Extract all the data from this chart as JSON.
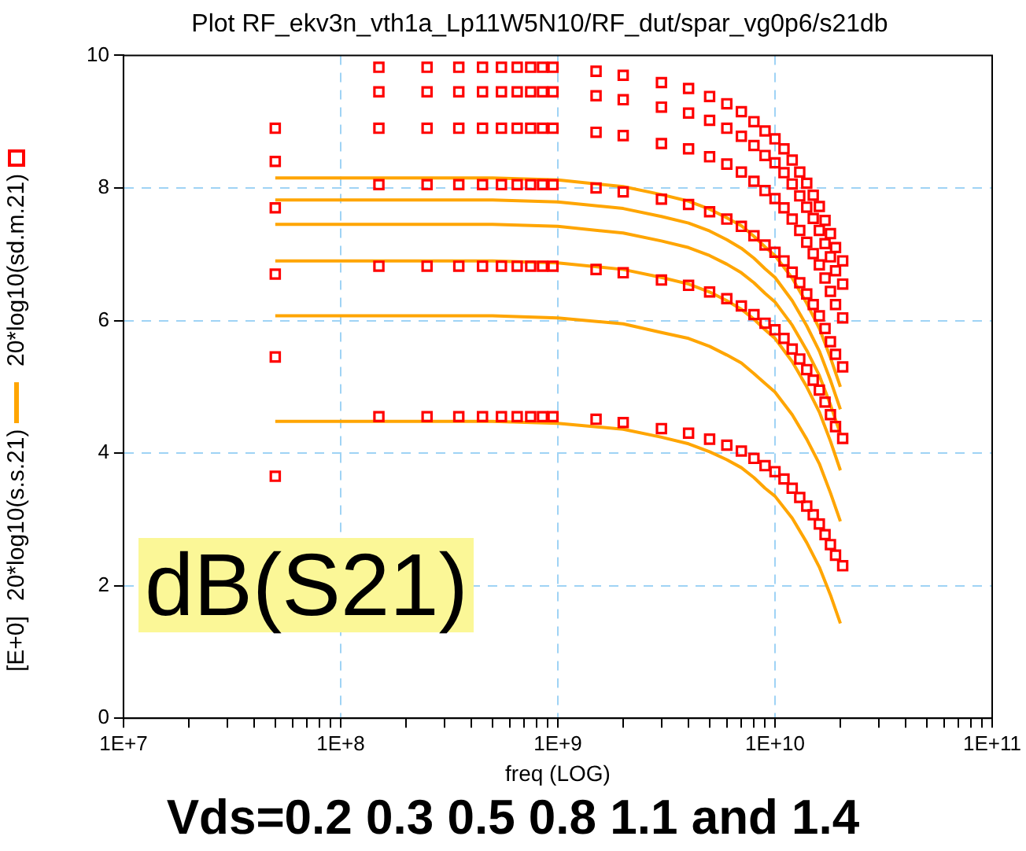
{
  "chart_data": {
    "type": "line",
    "title": "Plot RF_ekv3n_vth1a_Lp11W5N10/RF_dut/spar_vg0p6/s21db",
    "xlabel": "freq (LOG)",
    "ylabel": "[E+0]",
    "annotations": [
      "dB(S21)",
      "Vds=0.2 0.3 0.5 0.8 1.1 and 1.4"
    ],
    "log": "x",
    "grid": true,
    "legend": "left",
    "xlim": [
      10000000,
      100000000000
    ],
    "xticks": [
      {
        "value": 10000000,
        "label": "1E+7"
      },
      {
        "value": 20000000,
        "label": null
      },
      {
        "value": 30000000,
        "label": null
      },
      {
        "value": 40000000,
        "label": null
      },
      {
        "value": 50000000,
        "label": null
      },
      {
        "value": 60000000,
        "label": null
      },
      {
        "value": 70000000,
        "label": null
      },
      {
        "value": 80000000,
        "label": null
      },
      {
        "value": 90000000,
        "label": null
      },
      {
        "value": 100000000,
        "label": "1E+8"
      },
      {
        "value": 200000000,
        "label": null
      },
      {
        "value": 300000000,
        "label": null
      },
      {
        "value": 400000000,
        "label": null
      },
      {
        "value": 500000000,
        "label": null
      },
      {
        "value": 600000000,
        "label": null
      },
      {
        "value": 700000000,
        "label": null
      },
      {
        "value": 800000000,
        "label": null
      },
      {
        "value": 900000000,
        "label": null
      },
      {
        "value": 1000000000,
        "label": "1E+9"
      },
      {
        "value": 2000000000,
        "label": null
      },
      {
        "value": 3000000000,
        "label": null
      },
      {
        "value": 4000000000,
        "label": null
      },
      {
        "value": 5000000000,
        "label": null
      },
      {
        "value": 6000000000,
        "label": null
      },
      {
        "value": 7000000000,
        "label": null
      },
      {
        "value": 8000000000,
        "label": null
      },
      {
        "value": 9000000000,
        "label": null
      },
      {
        "value": 10000000000,
        "label": "1E+10"
      },
      {
        "value": 20000000000,
        "label": null
      },
      {
        "value": 30000000000,
        "label": null
      },
      {
        "value": 40000000000,
        "label": null
      },
      {
        "value": 50000000000,
        "label": null
      },
      {
        "value": 60000000000,
        "label": null
      },
      {
        "value": 70000000000,
        "label": null
      },
      {
        "value": 80000000000,
        "label": null
      },
      {
        "value": 90000000000,
        "label": null
      },
      {
        "value": 100000000000,
        "label": "1E+11"
      }
    ],
    "ylim": [
      0,
      10
    ],
    "yticks": [
      0,
      2,
      4,
      6,
      8,
      10
    ],
    "series": [
      {
        "name": "20*log10(sd.m.21)",
        "type": "scatter",
        "marker": "square",
        "color": "#ff0000",
        "x": [
          50000000,
          150000000,
          250000000,
          350000000,
          450000000,
          550000000,
          650000000,
          750000000,
          850000000,
          950000000,
          1500000000,
          2000000000,
          3000000000,
          4000000000,
          5000000000,
          6000000000,
          7000000000,
          8000000000,
          9000000000,
          10000000000,
          11000000000,
          12000000000,
          13000000000,
          14000000000,
          15000000000,
          16000000000,
          17000000000,
          18000000000,
          19000000000,
          20500000000
        ],
        "values": [
          8.9,
          9.82,
          9.82,
          9.82,
          9.82,
          9.82,
          9.82,
          9.82,
          9.82,
          9.82,
          9.76,
          9.7,
          9.59,
          9.5,
          9.38,
          9.27,
          9.15,
          9.0,
          8.86,
          8.74,
          8.59,
          8.42,
          8.24,
          8.07,
          7.89,
          7.72,
          7.51,
          7.31,
          7.1,
          6.9
        ]
      },
      {
        "type": "scatter",
        "marker": "square",
        "color": "#ff0000",
        "x": [
          50000000,
          150000000,
          250000000,
          350000000,
          450000000,
          550000000,
          650000000,
          750000000,
          850000000,
          950000000,
          1500000000,
          2000000000,
          3000000000,
          4000000000,
          5000000000,
          6000000000,
          7000000000,
          8000000000,
          9000000000,
          10000000000,
          11000000000,
          12000000000,
          13000000000,
          14000000000,
          15000000000,
          16000000000,
          17000000000,
          18000000000,
          19000000000,
          20500000000
        ],
        "values": [
          8.4,
          9.45,
          9.45,
          9.45,
          9.45,
          9.45,
          9.45,
          9.45,
          9.45,
          9.45,
          9.39,
          9.33,
          9.22,
          9.13,
          9.02,
          8.9,
          8.78,
          8.64,
          8.49,
          8.38,
          8.23,
          8.06,
          7.88,
          7.71,
          7.54,
          7.36,
          7.16,
          6.96,
          6.75,
          6.55
        ]
      },
      {
        "type": "scatter",
        "marker": "square",
        "color": "#ff0000",
        "x": [
          50000000,
          150000000,
          250000000,
          350000000,
          450000000,
          550000000,
          650000000,
          750000000,
          850000000,
          950000000,
          1500000000,
          2000000000,
          3000000000,
          4000000000,
          5000000000,
          6000000000,
          7000000000,
          8000000000,
          9000000000,
          10000000000,
          11000000000,
          12000000000,
          13000000000,
          14000000000,
          15000000000,
          16000000000,
          17000000000,
          18000000000,
          19000000000,
          20500000000
        ],
        "values": [
          7.7,
          8.9,
          8.9,
          8.9,
          8.9,
          8.9,
          8.9,
          8.9,
          8.9,
          8.9,
          8.84,
          8.79,
          8.67,
          8.59,
          8.47,
          8.36,
          8.24,
          8.1,
          7.96,
          7.84,
          7.7,
          7.53,
          7.36,
          7.18,
          7.01,
          6.84,
          6.64,
          6.44,
          6.24,
          6.04
        ]
      },
      {
        "type": "scatter",
        "marker": "square",
        "color": "#ff0000",
        "x": [
          50000000,
          150000000,
          250000000,
          350000000,
          450000000,
          550000000,
          650000000,
          750000000,
          850000000,
          950000000,
          1500000000,
          2000000000,
          3000000000,
          4000000000,
          5000000000,
          6000000000,
          7000000000,
          8000000000,
          9000000000,
          10000000000,
          11000000000,
          12000000000,
          13000000000,
          14000000000,
          15000000000,
          16000000000,
          17000000000,
          18000000000,
          19000000000,
          20500000000
        ],
        "values": [
          6.7,
          8.05,
          8.05,
          8.05,
          8.05,
          8.05,
          8.05,
          8.05,
          8.05,
          8.05,
          8.0,
          7.94,
          7.83,
          7.75,
          7.64,
          7.53,
          7.42,
          7.28,
          7.14,
          7.03,
          6.9,
          6.73,
          6.57,
          6.4,
          6.24,
          6.07,
          5.88,
          5.68,
          5.49,
          5.3
        ]
      },
      {
        "type": "scatter",
        "marker": "square",
        "color": "#ff0000",
        "x": [
          50000000,
          150000000,
          250000000,
          350000000,
          450000000,
          550000000,
          650000000,
          750000000,
          850000000,
          950000000,
          1500000000,
          2000000000,
          3000000000,
          4000000000,
          5000000000,
          6000000000,
          7000000000,
          8000000000,
          9000000000,
          10000000000,
          11000000000,
          12000000000,
          13000000000,
          14000000000,
          15000000000,
          16000000000,
          17000000000,
          18000000000,
          19000000000,
          20500000000
        ],
        "values": [
          5.45,
          6.82,
          6.82,
          6.82,
          6.82,
          6.82,
          6.82,
          6.82,
          6.82,
          6.82,
          6.77,
          6.72,
          6.61,
          6.53,
          6.43,
          6.33,
          6.22,
          6.09,
          5.96,
          5.86,
          5.73,
          5.57,
          5.42,
          5.26,
          5.1,
          4.95,
          4.77,
          4.58,
          4.4,
          4.22
        ]
      },
      {
        "type": "scatter",
        "marker": "square",
        "color": "#ff0000",
        "x": [
          50000000,
          150000000,
          250000000,
          350000000,
          450000000,
          550000000,
          650000000,
          750000000,
          850000000,
          950000000,
          1500000000,
          2000000000,
          3000000000,
          4000000000,
          5000000000,
          6000000000,
          7000000000,
          8000000000,
          9000000000,
          10000000000,
          11000000000,
          12000000000,
          13000000000,
          14000000000,
          15000000000,
          16000000000,
          17000000000,
          18000000000,
          19000000000,
          20500000000
        ],
        "values": [
          3.65,
          4.55,
          4.55,
          4.55,
          4.55,
          4.55,
          4.55,
          4.55,
          4.55,
          4.55,
          4.51,
          4.46,
          4.37,
          4.3,
          4.21,
          4.12,
          4.03,
          3.92,
          3.81,
          3.72,
          3.61,
          3.47,
          3.33,
          3.2,
          3.07,
          2.93,
          2.77,
          2.62,
          2.46,
          2.3
        ]
      },
      {
        "name": "20*log10(s.s.21)",
        "type": "line",
        "color": "#ffa500",
        "x": [
          50000000,
          100000000,
          200000000,
          500000000,
          1000000000,
          2000000000,
          3000000000,
          4000000000,
          5000000000,
          6000000000,
          7000000000,
          8000000000,
          9000000000,
          10000000000,
          12000000000,
          14000000000,
          16000000000,
          18000000000,
          20000000000
        ],
        "values": [
          8.15,
          8.15,
          8.15,
          8.15,
          8.12,
          8.02,
          7.9,
          7.8,
          7.68,
          7.55,
          7.43,
          7.27,
          7.11,
          6.98,
          6.64,
          6.26,
          5.88,
          5.44,
          5.0
        ]
      },
      {
        "type": "line",
        "color": "#ffa500",
        "x": [
          50000000,
          100000000,
          200000000,
          500000000,
          1000000000,
          2000000000,
          3000000000,
          4000000000,
          5000000000,
          6000000000,
          7000000000,
          8000000000,
          9000000000,
          10000000000,
          12000000000,
          14000000000,
          16000000000,
          18000000000,
          20000000000
        ],
        "values": [
          7.82,
          7.82,
          7.82,
          7.82,
          7.79,
          7.69,
          7.57,
          7.47,
          7.35,
          7.22,
          7.09,
          6.94,
          6.78,
          6.65,
          6.3,
          5.92,
          5.54,
          5.1,
          4.66
        ]
      },
      {
        "type": "line",
        "color": "#ffa500",
        "x": [
          50000000,
          100000000,
          200000000,
          500000000,
          1000000000,
          2000000000,
          3000000000,
          4000000000,
          5000000000,
          6000000000,
          7000000000,
          8000000000,
          9000000000,
          10000000000,
          12000000000,
          14000000000,
          16000000000,
          18000000000,
          20000000000
        ],
        "values": [
          7.45,
          7.45,
          7.45,
          7.45,
          7.42,
          7.32,
          7.2,
          7.1,
          6.98,
          6.85,
          6.72,
          6.57,
          6.41,
          6.28,
          5.93,
          5.55,
          5.17,
          4.73,
          4.29
        ]
      },
      {
        "type": "line",
        "color": "#ffa500",
        "x": [
          50000000,
          100000000,
          200000000,
          500000000,
          1000000000,
          2000000000,
          3000000000,
          4000000000,
          5000000000,
          6000000000,
          7000000000,
          8000000000,
          9000000000,
          10000000000,
          12000000000,
          14000000000,
          16000000000,
          18000000000,
          20000000000
        ],
        "values": [
          6.9,
          6.9,
          6.9,
          6.9,
          6.87,
          6.77,
          6.65,
          6.55,
          6.43,
          6.3,
          6.17,
          6.02,
          5.86,
          5.73,
          5.38,
          5.0,
          4.62,
          4.18,
          3.74
        ]
      },
      {
        "type": "line",
        "color": "#ffa500",
        "x": [
          50000000,
          100000000,
          200000000,
          500000000,
          1000000000,
          2000000000,
          3000000000,
          4000000000,
          5000000000,
          6000000000,
          7000000000,
          8000000000,
          9000000000,
          10000000000,
          12000000000,
          14000000000,
          16000000000,
          18000000000,
          20000000000
        ],
        "values": [
          6.07,
          6.07,
          6.07,
          6.07,
          6.04,
          5.95,
          5.82,
          5.73,
          5.61,
          5.48,
          5.36,
          5.2,
          5.05,
          4.92,
          4.58,
          4.21,
          3.84,
          3.4,
          2.97
        ]
      },
      {
        "type": "line",
        "color": "#ffa500",
        "x": [
          50000000,
          100000000,
          200000000,
          500000000,
          1000000000,
          2000000000,
          3000000000,
          4000000000,
          5000000000,
          6000000000,
          7000000000,
          8000000000,
          9000000000,
          10000000000,
          12000000000,
          14000000000,
          16000000000,
          18000000000,
          20000000000
        ],
        "values": [
          4.48,
          4.48,
          4.48,
          4.48,
          4.45,
          4.36,
          4.24,
          4.14,
          4.02,
          3.9,
          3.78,
          3.63,
          3.47,
          3.35,
          3.02,
          2.65,
          2.28,
          1.86,
          1.43
        ]
      }
    ]
  }
}
